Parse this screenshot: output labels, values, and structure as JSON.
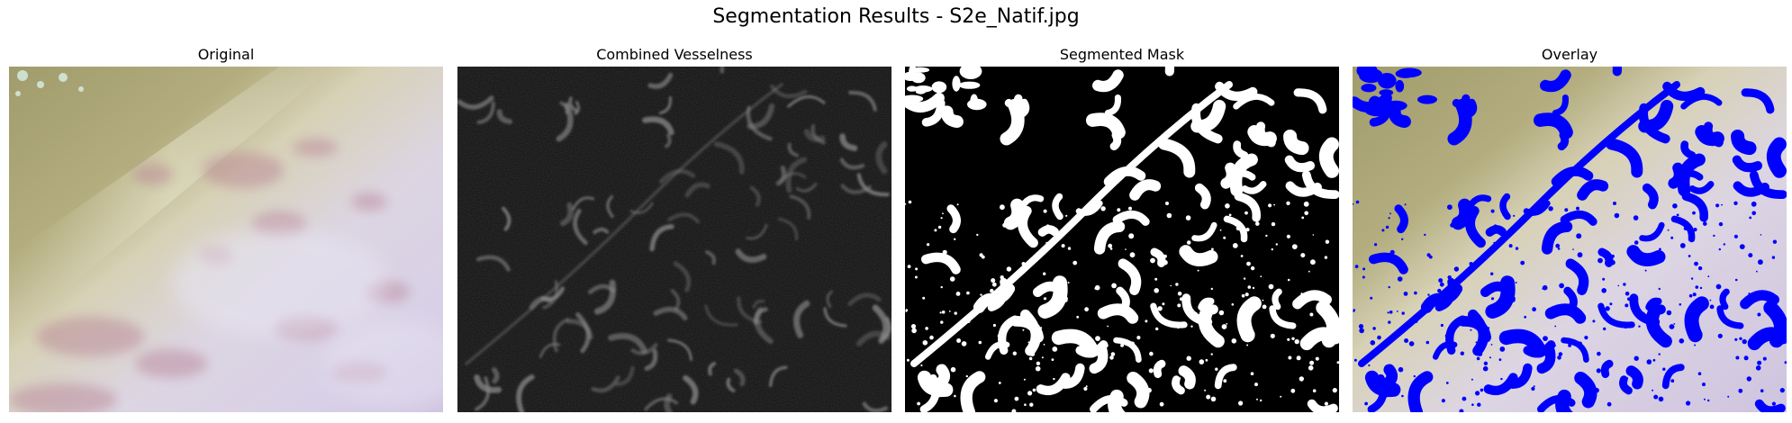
{
  "figure": {
    "title": "Segmentation Results - S2e_Natif.jpg"
  },
  "panels": [
    {
      "title": "Original",
      "kind": "original"
    },
    {
      "title": "Combined Vesselness",
      "kind": "vesselness"
    },
    {
      "title": "Segmented Mask",
      "kind": "mask"
    },
    {
      "title": "Overlay",
      "kind": "overlay"
    }
  ],
  "colors": {
    "background": "#ffffff",
    "mask_foreground": "#ffffff",
    "mask_background": "#000000",
    "overlay_vessel": "#0000ff",
    "tissue_light": "#dcd6e8",
    "tissue_olive": "#a09a6a",
    "vessel_pink": "#b0788e"
  }
}
